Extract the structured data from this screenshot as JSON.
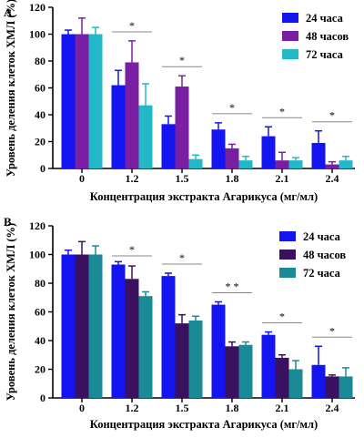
{
  "chart_data": [
    {
      "panel_label": "A",
      "type": "bar",
      "xlabel": "Концентрация экстракта Агарикуса (мг/мл)",
      "ylabel": "Уровень деления клеток ХМЛ (%)",
      "categories": [
        "0",
        "1.2",
        "1.5",
        "1.8",
        "2.1",
        "2.4"
      ],
      "ylim": [
        0,
        120
      ],
      "yticks": [
        "0",
        "20",
        "40",
        "60",
        "80",
        "100",
        "120"
      ],
      "legend_position": "top-right",
      "series": [
        {
          "name": "24 часа",
          "color": "#1414f0",
          "values": [
            100,
            62,
            33,
            29,
            24,
            19
          ],
          "errors": [
            3,
            11,
            6,
            5,
            7,
            9
          ]
        },
        {
          "name": "48 часов",
          "color": "#7a1fa2",
          "values": [
            100,
            79,
            61,
            15,
            6,
            3
          ],
          "errors": [
            12,
            16,
            8,
            3,
            6,
            2
          ]
        },
        {
          "name": "72 часа",
          "color": "#22b8c8",
          "values": [
            100,
            47,
            7,
            6,
            6,
            6
          ],
          "errors": [
            5,
            16,
            3,
            3,
            2,
            3
          ]
        }
      ],
      "significance": [
        {
          "category": "1.2",
          "label": "*"
        },
        {
          "category": "1.5",
          "label": "*"
        },
        {
          "category": "1.8",
          "label": "*"
        },
        {
          "category": "2.1",
          "label": "*"
        },
        {
          "category": "2.4",
          "label": "*"
        }
      ]
    },
    {
      "panel_label": "B",
      "type": "bar",
      "xlabel": "Концентрация экстракта Агарикуса (мг/мл)",
      "ylabel": "Уровень деления клеток ХМЛ (%)",
      "categories": [
        "0",
        "1.2",
        "1.5",
        "1.8",
        "2.1",
        "2.4"
      ],
      "ylim": [
        0,
        120
      ],
      "yticks": [
        "0",
        "20",
        "40",
        "60",
        "80",
        "100",
        "120"
      ],
      "legend_position": "top-right",
      "series": [
        {
          "name": "24 часа",
          "color": "#1414f0",
          "values": [
            100,
            93,
            85,
            65,
            44,
            23
          ],
          "errors": [
            3,
            2,
            2,
            2,
            2,
            13
          ]
        },
        {
          "name": "48 часов",
          "color": "#3a1060",
          "values": [
            100,
            83,
            52,
            36,
            28,
            15
          ],
          "errors": [
            9,
            9,
            6,
            3,
            2,
            1
          ]
        },
        {
          "name": "72 часа",
          "color": "#1a8a96",
          "values": [
            100,
            71,
            54,
            37,
            20,
            15
          ],
          "errors": [
            6,
            3,
            3,
            2,
            6,
            6
          ]
        }
      ],
      "significance": [
        {
          "category": "1.2",
          "label": "*"
        },
        {
          "category": "1.5",
          "label": "*"
        },
        {
          "category": "1.8",
          "label": "* *"
        },
        {
          "category": "2.1",
          "label": "*"
        },
        {
          "category": "2.4",
          "label": "*"
        }
      ]
    }
  ]
}
